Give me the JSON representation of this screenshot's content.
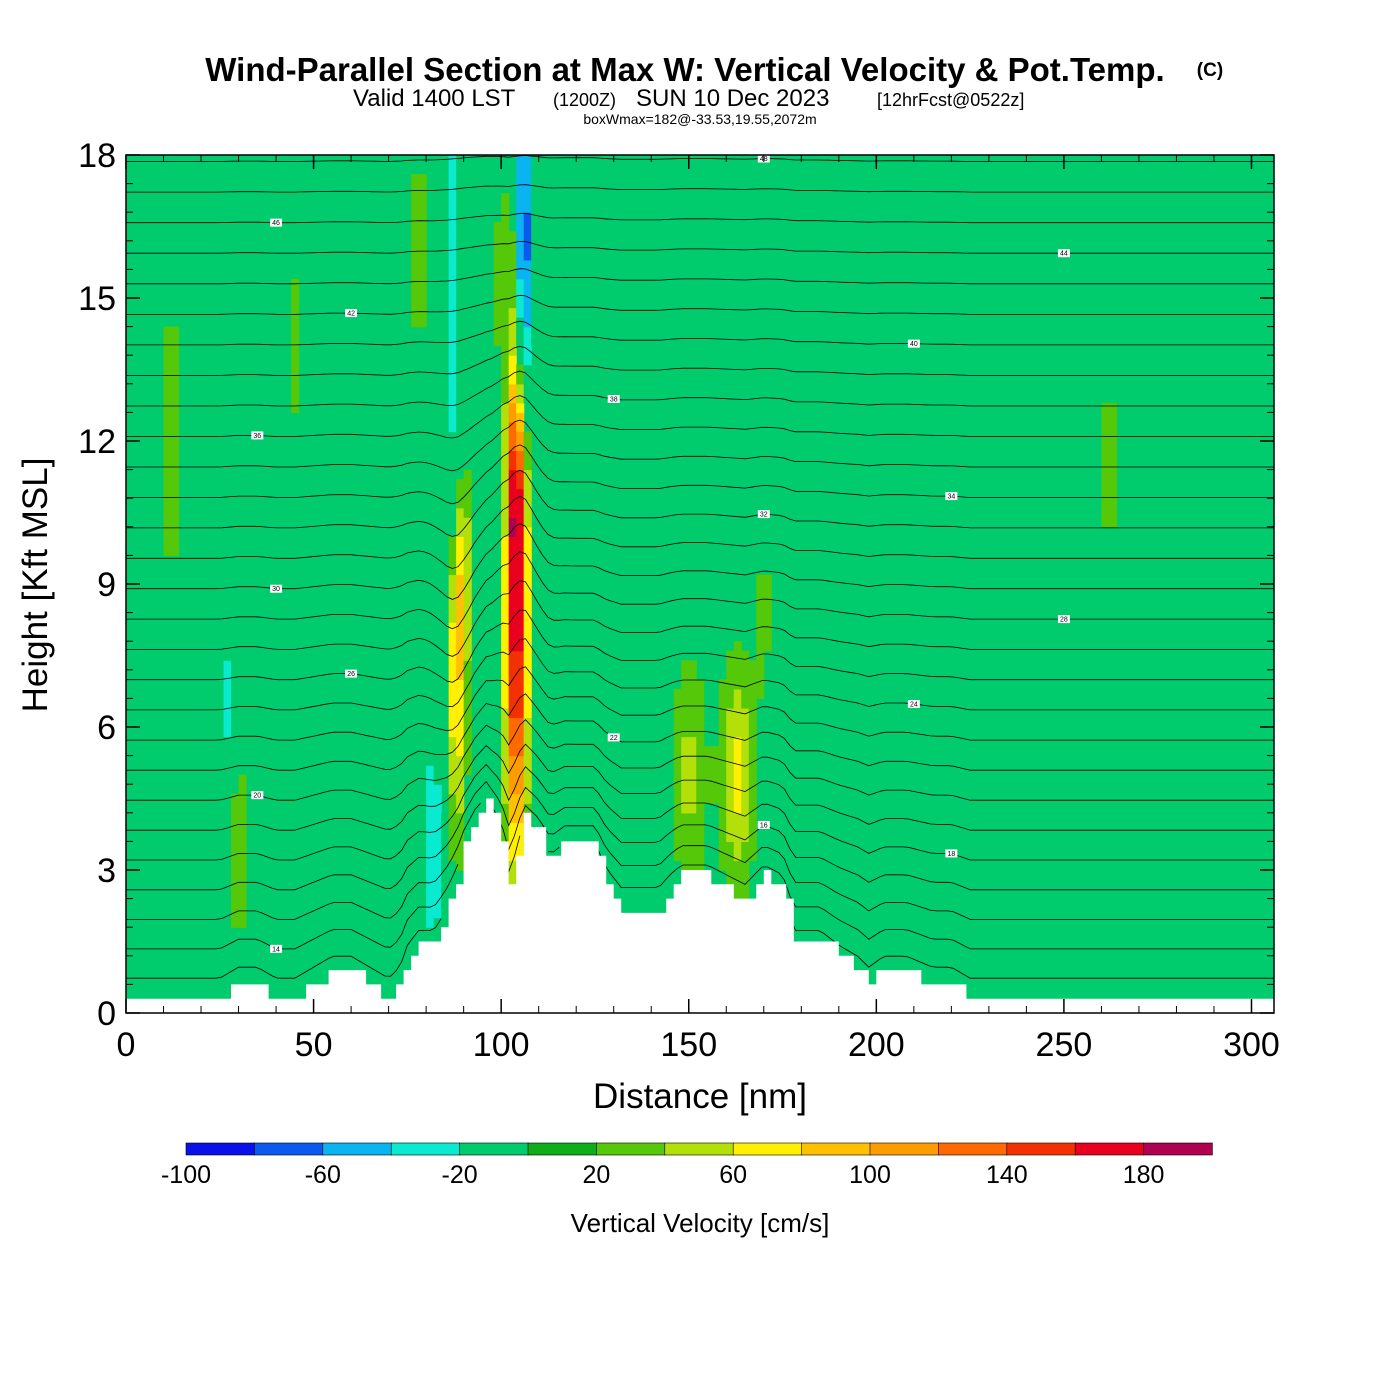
{
  "title": {
    "main": "Wind-Parallel Section at Max W: Vertical Velocity & Pot.Temp.",
    "copyright": "(C)",
    "valid_prefix": "Valid 1400 LST",
    "valid_utc": "(1200Z)",
    "valid_date": "SUN 10 Dec 2023",
    "forecast": "[12hrFcst@0522z]",
    "boxwmax": "boxWmax=182@-33.53,19.55,2072m"
  },
  "chart_data": {
    "type": "heatmap",
    "xlabel": "Distance [nm]",
    "ylabel": "Height [Kft MSL]",
    "xlim": [
      0,
      306
    ],
    "ylim": [
      0,
      18
    ],
    "x_ticks": [
      0,
      50,
      100,
      150,
      200,
      250,
      300
    ],
    "y_ticks": [
      0,
      3,
      6,
      9,
      12,
      15,
      18
    ],
    "colorbar": {
      "label": "Vertical Velocity [cm/s]",
      "min": -100,
      "max": 200,
      "step": 20,
      "tick_labels": [
        "-100",
        "-60",
        "-20",
        "20",
        "60",
        "100",
        "140",
        "180"
      ],
      "colors": [
        "#0a10e8",
        "#0a5af0",
        "#0ab4f0",
        "#0aead0",
        "#00cc6e",
        "#0fad18",
        "#55c80a",
        "#b4e00a",
        "#fff000",
        "#ffc000",
        "#ff9c00",
        "#ff6a00",
        "#f23000",
        "#e8001e",
        "#b00050"
      ]
    },
    "background_value": 0,
    "terrain_kft": [
      [
        0,
        0.3
      ],
      [
        5,
        0.3
      ],
      [
        10,
        0.3
      ],
      [
        15,
        0.3
      ],
      [
        20,
        0.3
      ],
      [
        25,
        0.3
      ],
      [
        30,
        0.6
      ],
      [
        35,
        0.6
      ],
      [
        40,
        0.3
      ],
      [
        45,
        0.3
      ],
      [
        50,
        0.6
      ],
      [
        55,
        0.9
      ],
      [
        60,
        0.9
      ],
      [
        65,
        0.6
      ],
      [
        70,
        0.3
      ],
      [
        73,
        0.6
      ],
      [
        75,
        1.2
      ],
      [
        78,
        1.6
      ],
      [
        82,
        1.6
      ],
      [
        85,
        2.1
      ],
      [
        88,
        2.8
      ],
      [
        90,
        3.5
      ],
      [
        93,
        4.2
      ],
      [
        96,
        4.6
      ],
      [
        100,
        3.6
      ],
      [
        102,
        2.6
      ],
      [
        104,
        3.2
      ],
      [
        106,
        4.2
      ],
      [
        110,
        3.8
      ],
      [
        113,
        3.2
      ],
      [
        117,
        3.6
      ],
      [
        120,
        3.6
      ],
      [
        125,
        3.6
      ],
      [
        128,
        2.8
      ],
      [
        132,
        2.2
      ],
      [
        137,
        2.2
      ],
      [
        142,
        2.2
      ],
      [
        145,
        2.6
      ],
      [
        148,
        2.9
      ],
      [
        155,
        2.9
      ],
      [
        160,
        2.6
      ],
      [
        165,
        2.3
      ],
      [
        170,
        2.9
      ],
      [
        175,
        2.6
      ],
      [
        178,
        1.6
      ],
      [
        185,
        1.6
      ],
      [
        190,
        1.2
      ],
      [
        195,
        0.9
      ],
      [
        198,
        0.6
      ],
      [
        202,
        0.9
      ],
      [
        208,
        0.9
      ],
      [
        215,
        0.6
      ],
      [
        220,
        0.6
      ],
      [
        225,
        0.3
      ],
      [
        230,
        0.3
      ],
      [
        240,
        0.3
      ],
      [
        260,
        0.3
      ],
      [
        280,
        0.3
      ],
      [
        306,
        0.3
      ]
    ],
    "updrafts": [
      {
        "x": 104,
        "z": 8.0,
        "sx": 2.2,
        "sz": 3.5,
        "w": 175
      },
      {
        "x": 104,
        "z": 11.0,
        "sx": 1.5,
        "sz": 1.4,
        "w": 70
      },
      {
        "x": 88,
        "z": 7.0,
        "sx": 2.0,
        "sz": 2.5,
        "w": 85
      },
      {
        "x": 90,
        "z": 9.5,
        "sx": 1.5,
        "sz": 1.5,
        "w": 50
      },
      {
        "x": 100,
        "z": 14.0,
        "sx": 2.5,
        "sz": 3.0,
        "w": 55
      },
      {
        "x": 150,
        "z": 5.0,
        "sx": 3.5,
        "sz": 2.0,
        "w": 45
      },
      {
        "x": 163,
        "z": 5.0,
        "sx": 3.5,
        "sz": 1.8,
        "w": 65
      },
      {
        "x": 30,
        "z": 3.5,
        "sx": 1.5,
        "sz": 1.5,
        "w": 45
      },
      {
        "x": 170,
        "z": 8.5,
        "sx": 2.0,
        "sz": 1.5,
        "w": 25
      },
      {
        "x": 262,
        "z": 11.5,
        "sx": 4.0,
        "sz": 2.0,
        "w": 25
      },
      {
        "x": 78,
        "z": 16.0,
        "sx": 4.0,
        "sz": 2.5,
        "w": 25
      },
      {
        "x": 45,
        "z": 14.0,
        "sx": 1.5,
        "sz": 2.0,
        "w": 25
      },
      {
        "x": 12,
        "z": 12.0,
        "sx": 3.0,
        "sz": 4.0,
        "w": 25
      }
    ],
    "downdrafts": [
      {
        "x": 106,
        "z": 16.0,
        "sx": 1.2,
        "sz": 2.5,
        "w": -95
      },
      {
        "x": 100,
        "z": 12.5,
        "sx": 1.8,
        "sz": 3.0,
        "w": -45
      },
      {
        "x": 87,
        "z": 14.0,
        "sx": 2.0,
        "sz": 4.0,
        "w": -35
      },
      {
        "x": 82,
        "z": 3.5,
        "sx": 2.5,
        "sz": 2.0,
        "w": -30
      },
      {
        "x": 27,
        "z": 6.5,
        "sx": 2.0,
        "sz": 1.5,
        "w": -25
      },
      {
        "x": 152,
        "z": 17.0,
        "sx": 1.5,
        "sz": 1.5,
        "w": -25
      }
    ],
    "isentropes": {
      "count": 28,
      "base_kft": 0.5,
      "top_kft": 18.5,
      "labels": [
        "14",
        "16",
        "18",
        "20",
        "22",
        "24",
        "26",
        "28",
        "30",
        "32",
        "34",
        "36",
        "38",
        "40",
        "42",
        "44",
        "46",
        "48"
      ]
    }
  }
}
